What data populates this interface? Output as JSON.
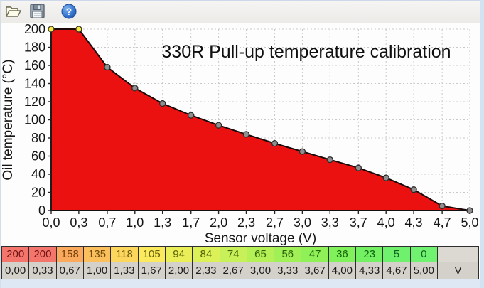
{
  "toolbar": {
    "buttons": [
      {
        "name": "open",
        "icon": "open-folder-icon"
      },
      {
        "name": "save",
        "icon": "save-icon"
      },
      {
        "name": "help",
        "icon": "help-icon"
      }
    ]
  },
  "chart_data": {
    "type": "area",
    "title": "330R Pull-up temperature calibration",
    "xlabel": "Sensor voltage (V)",
    "ylabel": "Oil temperature (°C)",
    "x": [
      0.0,
      0.33,
      0.67,
      1.0,
      1.33,
      1.67,
      2.0,
      2.33,
      2.67,
      3.0,
      3.33,
      3.67,
      4.0,
      4.33,
      4.67,
      5.0
    ],
    "values": [
      200,
      200,
      158,
      135,
      118,
      105,
      94,
      84,
      74,
      65,
      56,
      47,
      36,
      23,
      5,
      0
    ],
    "x_tick_labels": [
      "0,0",
      "0,3",
      "0,7",
      "1,0",
      "1,3",
      "1,7",
      "2,0",
      "2,3",
      "2,7",
      "3,0",
      "3,3",
      "3,7",
      "4,0",
      "4,3",
      "4,7",
      "5,0"
    ],
    "y_ticks": [
      0,
      20,
      40,
      60,
      80,
      100,
      120,
      140,
      160,
      180,
      200
    ],
    "xlim": [
      0,
      5
    ],
    "ylim": [
      0,
      200
    ],
    "grid": true,
    "legend": false,
    "area_fill": "#ec1111",
    "line_color": "#1c0808",
    "marker_fill": "#8f8f8f",
    "marker_stroke": "#2b2b2b",
    "highlight_indices": [
      0,
      1
    ],
    "highlight_fill": "#f9e641"
  },
  "table": {
    "unit": "V",
    "columns": [
      {
        "temp": "200",
        "volt": "0,00",
        "bg": "#f4756b",
        "fg": "#6d1212"
      },
      {
        "temp": "200",
        "volt": "0,33",
        "bg": "#f4756b",
        "fg": "#6d1212"
      },
      {
        "temp": "158",
        "volt": "0,67",
        "bg": "#fba95d",
        "fg": "#6f3f08"
      },
      {
        "temp": "135",
        "volt": "1,00",
        "bg": "#fcbf5e",
        "fg": "#6f4c08"
      },
      {
        "temp": "118",
        "volt": "1,33",
        "bg": "#fdd65e",
        "fg": "#6d5a07"
      },
      {
        "temp": "105",
        "volt": "1,67",
        "bg": "#fbe95e",
        "fg": "#676107"
      },
      {
        "temp": "94",
        "volt": "2,00",
        "bg": "#eaef59",
        "fg": "#5d6307"
      },
      {
        "temp": "84",
        "volt": "2,33",
        "bg": "#dcf058",
        "fg": "#516307"
      },
      {
        "temp": "74",
        "volt": "2,67",
        "bg": "#c8f058",
        "fg": "#436307"
      },
      {
        "temp": "65",
        "volt": "3,00",
        "bg": "#b4f056",
        "fg": "#376308"
      },
      {
        "temp": "56",
        "volt": "3,33",
        "bg": "#a2f058",
        "fg": "#2b6308"
      },
      {
        "temp": "47",
        "volt": "3,67",
        "bg": "#90f058",
        "fg": "#206308"
      },
      {
        "temp": "36",
        "volt": "4,00",
        "bg": "#80f15a",
        "fg": "#156309"
      },
      {
        "temp": "23",
        "volt": "4,33",
        "bg": "#74f162",
        "fg": "#0f6313"
      },
      {
        "temp": "5",
        "volt": "4,67",
        "bg": "#70f16d",
        "fg": "#0e631c"
      },
      {
        "temp": "0",
        "volt": "5,00",
        "bg": "#70f170",
        "fg": "#0e631e"
      }
    ]
  }
}
